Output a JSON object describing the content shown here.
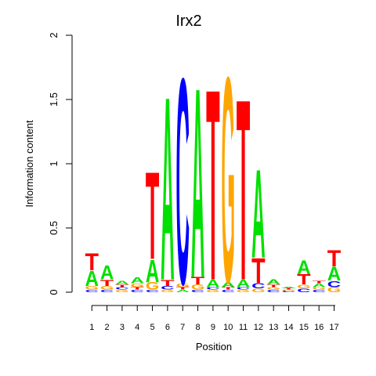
{
  "chart_data": {
    "type": "sequence-logo",
    "title": "Irx2",
    "xlabel": "Position",
    "ylabel": "Information content",
    "ylim": [
      0,
      2
    ],
    "yticks": [
      "0",
      "0.5",
      "1",
      "1.5",
      "2"
    ],
    "xticks": [
      "1",
      "2",
      "3",
      "4",
      "5",
      "6",
      "7",
      "8",
      "9",
      "10",
      "11",
      "12",
      "13",
      "14",
      "15",
      "16",
      "17"
    ],
    "colors": {
      "A": "#00e000",
      "C": "#0000ff",
      "G": "#ffa500",
      "T": "#ff0000"
    },
    "positions": [
      [
        [
          "C",
          0.02
        ],
        [
          "G",
          0.03
        ],
        [
          "A",
          0.12
        ],
        [
          "T",
          0.14
        ]
      ],
      [
        [
          "C",
          0.02
        ],
        [
          "G",
          0.03
        ],
        [
          "T",
          0.05
        ],
        [
          "A",
          0.11
        ]
      ],
      [
        [
          "G",
          0.02
        ],
        [
          "C",
          0.02
        ],
        [
          "T",
          0.02
        ],
        [
          "A",
          0.03
        ]
      ],
      [
        [
          "C",
          0.02
        ],
        [
          "T",
          0.02
        ],
        [
          "G",
          0.03
        ],
        [
          "A",
          0.05
        ]
      ],
      [
        [
          "C",
          0.02
        ],
        [
          "G",
          0.06
        ],
        [
          "A",
          0.18
        ],
        [
          "T",
          0.7
        ]
      ],
      [
        [
          "G",
          0.02
        ],
        [
          "C",
          0.03
        ],
        [
          "T",
          0.05
        ],
        [
          "A",
          1.47
        ]
      ],
      [
        [
          "A",
          0.02
        ],
        [
          "T",
          0.02
        ],
        [
          "G",
          0.03
        ],
        [
          "C",
          1.65
        ]
      ],
      [
        [
          "C",
          0.02
        ],
        [
          "G",
          0.04
        ],
        [
          "T",
          0.06
        ],
        [
          "A",
          1.52
        ]
      ],
      [
        [
          "G",
          0.02
        ],
        [
          "C",
          0.02
        ],
        [
          "A",
          0.06
        ],
        [
          "T",
          1.53
        ]
      ],
      [
        [
          "C",
          0.02
        ],
        [
          "T",
          0.02
        ],
        [
          "A",
          0.04
        ],
        [
          "G",
          1.65
        ]
      ],
      [
        [
          "G",
          0.02
        ],
        [
          "C",
          0.02
        ],
        [
          "A",
          0.06
        ],
        [
          "T",
          1.45
        ]
      ],
      [
        [
          "G",
          0.03
        ],
        [
          "C",
          0.04
        ],
        [
          "T",
          0.2
        ],
        [
          "A",
          0.71
        ]
      ],
      [
        [
          "C",
          0.02
        ],
        [
          "G",
          0.02
        ],
        [
          "T",
          0.02
        ],
        [
          "A",
          0.04
        ]
      ],
      [
        [
          "C",
          0.01
        ],
        [
          "G",
          0.01
        ],
        [
          "T",
          0.01
        ],
        [
          "A",
          0.01
        ]
      ],
      [
        [
          "C",
          0.03
        ],
        [
          "G",
          0.03
        ],
        [
          "T",
          0.08
        ],
        [
          "A",
          0.11
        ]
      ],
      [
        [
          "C",
          0.02
        ],
        [
          "G",
          0.02
        ],
        [
          "A",
          0.03
        ],
        [
          "T",
          0.02
        ]
      ],
      [
        [
          "G",
          0.04
        ],
        [
          "C",
          0.05
        ],
        [
          "A",
          0.11
        ],
        [
          "T",
          0.13
        ]
      ]
    ]
  }
}
